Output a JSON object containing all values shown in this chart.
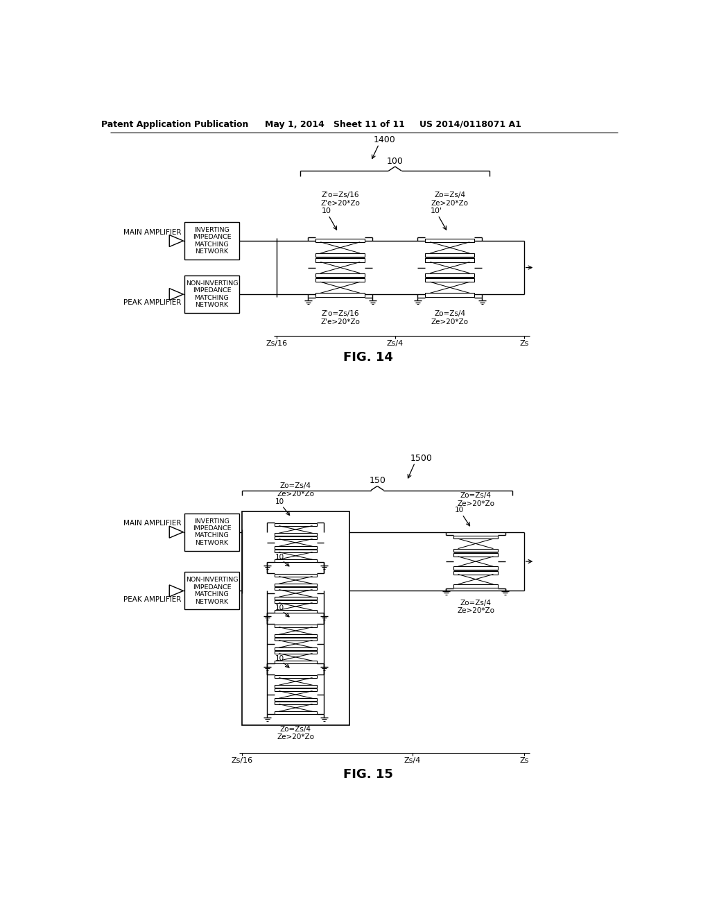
{
  "bg_color": "#ffffff",
  "header_text": "Patent Application Publication",
  "header_date": "May 1, 2014",
  "header_sheet": "Sheet 11 of 11",
  "header_patent": "US 2014/0118071 A1",
  "fig14_label": "FIG. 14",
  "fig15_label": "FIG. 15",
  "fig14_number": "1400",
  "fig15_number": "1500",
  "fig14_block_number": "100",
  "fig15_block_number": "150",
  "main_amplifier": "MAIN AMPLIFIER",
  "peak_amplifier": "PEAK AMPLIFIER",
  "inverting_network": "INVERTING\nIMPEDANCE\nMATCHING\nNETWORK",
  "non_inverting_network": "NON-INVERTING\nIMPEDANCE\nMATCHING\nNETWORK",
  "label_10": "10",
  "label_10prime": "10'",
  "label_zs16": "Zs/16",
  "label_zs4": "Zs/4",
  "label_zs": "Zs",
  "zo_zs16_upper": "Z'o=Zs/16\nZ'e>20*Zo",
  "zo_zs4": "Zo=Zs/4\nZe>20*Zo",
  "zo_zs16_lower": "Z'o=Zs/16\nZ'e>20*Zo"
}
